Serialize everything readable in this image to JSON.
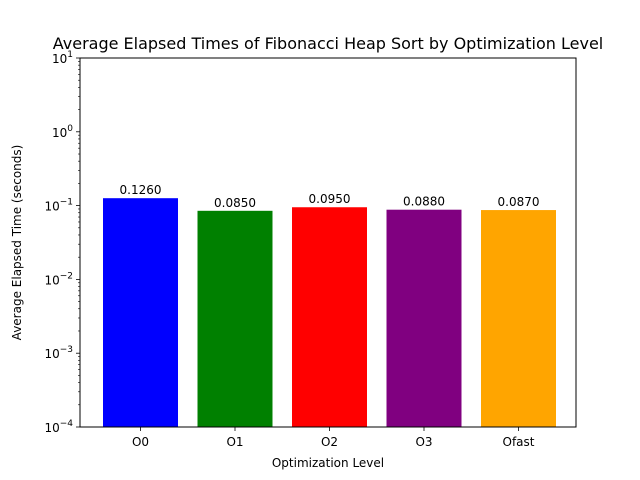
{
  "chart_data": {
    "type": "bar",
    "title": "Average Elapsed Times of Fibonacci Heap Sort by Optimization Level",
    "xlabel": "Optimization Level",
    "ylabel": "Average Elapsed Time (seconds)",
    "yscale": "log",
    "ylim": [
      0.0001,
      10
    ],
    "categories": [
      "O0",
      "O1",
      "O2",
      "O3",
      "Ofast"
    ],
    "values": [
      0.126,
      0.085,
      0.095,
      0.088,
      0.087
    ],
    "value_labels": [
      "0.1260",
      "0.0850",
      "0.0950",
      "0.0880",
      "0.0870"
    ],
    "colors": [
      "#0000ff",
      "#008000",
      "#ff0000",
      "#800080",
      "#ffa500"
    ],
    "y_ticks": [
      {
        "value": 0.0001,
        "base": "10",
        "exp": "−4"
      },
      {
        "value": 0.001,
        "base": "10",
        "exp": "−3"
      },
      {
        "value": 0.01,
        "base": "10",
        "exp": "−2"
      },
      {
        "value": 0.1,
        "base": "10",
        "exp": "−1"
      },
      {
        "value": 1,
        "base": "10",
        "exp": "0"
      },
      {
        "value": 10,
        "base": "10",
        "exp": "1"
      }
    ],
    "grid": false,
    "legend": "none"
  }
}
